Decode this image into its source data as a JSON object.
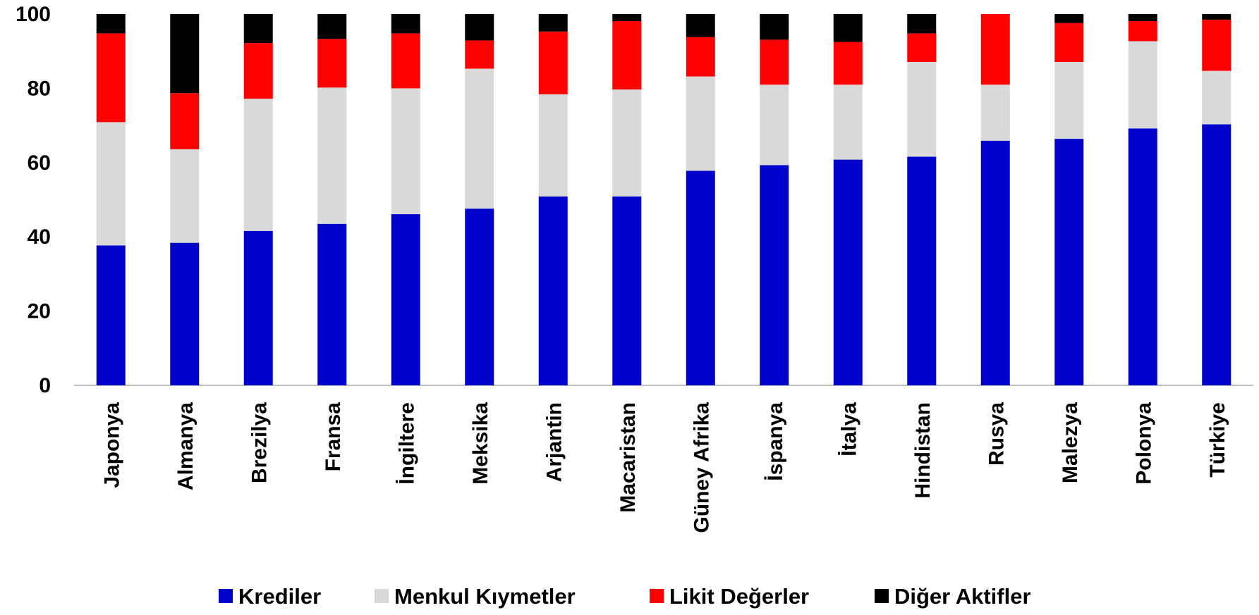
{
  "chart_data": {
    "type": "stacked_bar",
    "categories": [
      "Japonya",
      "Almanya",
      "Brezilya",
      "Fransa",
      "İngiltere",
      "Meksika",
      "Arjantin",
      "Macaristan",
      "Güney Afrika",
      "İspanya",
      "İtalya",
      "Hindistan",
      "Rusya",
      "Malezya",
      "Polonya",
      "Türkiye"
    ],
    "series": [
      {
        "name": "Krediler",
        "color": "#0000cc",
        "values": [
          37.7,
          38.4,
          41.6,
          43.5,
          46.1,
          47.6,
          50.9,
          50.9,
          57.8,
          59.3,
          60.8,
          61.6,
          65.9,
          66.4,
          69.2,
          70.3
        ]
      },
      {
        "name": "Menkul Kıymetler",
        "color": "#d9d9d9",
        "values": [
          33.2,
          25.2,
          35.6,
          36.7,
          33.9,
          37.7,
          27.5,
          28.8,
          25.4,
          21.7,
          20.2,
          25.5,
          15.1,
          20.7,
          23.5,
          14.4
        ]
      },
      {
        "name": "Likit Değerler",
        "color": "#ff0000",
        "values": [
          23.9,
          15.1,
          15.0,
          13.1,
          14.8,
          7.6,
          16.9,
          18.4,
          10.6,
          12.1,
          11.5,
          7.7,
          19.0,
          10.5,
          5.4,
          13.8
        ]
      },
      {
        "name": "Diğer Aktifler",
        "color": "#000000",
        "values": [
          5.2,
          21.3,
          7.8,
          6.7,
          5.2,
          7.1,
          4.7,
          1.9,
          6.2,
          6.9,
          7.5,
          5.2,
          0,
          2.4,
          1.9,
          1.5
        ]
      }
    ],
    "ylim": [
      0,
      100
    ],
    "yticks": [
      0,
      20,
      40,
      60,
      80,
      100
    ],
    "grid": false,
    "legend": "bottom"
  }
}
